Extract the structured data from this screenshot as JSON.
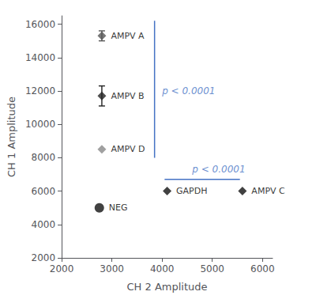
{
  "chart_data": {
    "type": "scatter",
    "xlabel": "CH 2 Amplitude",
    "ylabel": "CH 1 Amplitude",
    "xlim": [
      2000,
      6200
    ],
    "ylim": [
      2000,
      16500
    ],
    "xticks": [
      2000,
      3000,
      4000,
      5000,
      6000
    ],
    "yticks": [
      2000,
      4000,
      6000,
      8000,
      10000,
      12000,
      14000,
      16000
    ],
    "grid": false,
    "points": [
      {
        "label": "AMPV A",
        "x": 2800,
        "y": 15300,
        "yerr": 300,
        "marker": "diamond",
        "color": "#555555"
      },
      {
        "label": "AMPV B",
        "x": 2800,
        "y": 11700,
        "yerr": 600,
        "marker": "diamond",
        "color": "#222222"
      },
      {
        "label": "AMPV D",
        "x": 2800,
        "y": 8500,
        "yerr": 0,
        "marker": "diamond",
        "color": "#888888"
      },
      {
        "label": "NEG",
        "x": 2750,
        "y": 5000,
        "yerr": 0,
        "marker": "circle",
        "color": "#111111"
      },
      {
        "label": "GAPDH",
        "x": 4100,
        "y": 6000,
        "yerr": 0,
        "marker": "diamond",
        "color": "#111111"
      },
      {
        "label": "AMPV C",
        "x": 5600,
        "y": 6000,
        "yerr": 0,
        "marker": "diamond",
        "color": "#111111"
      }
    ],
    "lines": [
      {
        "x": [
          3850,
          3850
        ],
        "y": [
          8000,
          16200
        ],
        "color": "#4472C4"
      },
      {
        "x": [
          4050,
          5550
        ],
        "y": [
          6700,
          6700
        ],
        "color": "#4472C4"
      }
    ],
    "annotations": [
      {
        "text": "p < 0.0001",
        "x": 4000,
        "y": 12000,
        "color": "#4472C4"
      },
      {
        "text": "p < 0.0001",
        "x": 4600,
        "y": 7300,
        "color": "#4472C4"
      }
    ]
  }
}
